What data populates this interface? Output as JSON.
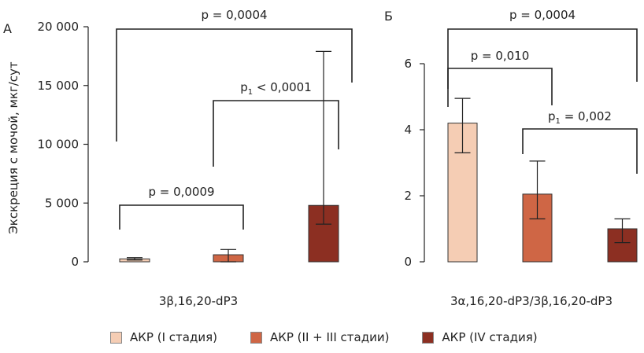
{
  "colors": {
    "stage1": "#f5cdb4",
    "stage23": "#cf6645",
    "stage4": "#8c2f22",
    "stroke": "#222222"
  },
  "legend": [
    {
      "label": "АКР (I стадия)",
      "color": "#f5cdb4"
    },
    {
      "label": "АКР (II + III стадии)",
      "color": "#cf6645"
    },
    {
      "label": "АКР (IV стадия)",
      "color": "#8c2f22"
    }
  ],
  "chart_data": [
    {
      "panel": "А",
      "type": "bar",
      "xlabel": "3β,16,20-dP3",
      "ylabel": "Экскреция с мочой, мкг/сут",
      "ylim": [
        0,
        20000
      ],
      "yticks": [
        0,
        5000,
        10000,
        15000,
        20000
      ],
      "ytick_labels": [
        "0",
        "5 000",
        "10 000",
        "15 000",
        "20 000"
      ],
      "series": [
        {
          "name": "АКР (I стадия)",
          "value": 250,
          "err_low": 150,
          "err_high": 350
        },
        {
          "name": "АКР (II + III стадии)",
          "value": 600,
          "err_low": 0,
          "err_high": 1050
        },
        {
          "name": "АКР (IV стадия)",
          "value": 4800,
          "err_low": 3200,
          "err_high": 17900
        }
      ],
      "annotations": [
        {
          "text": "p = 0,0004",
          "from": 0,
          "to": 2
        },
        {
          "text": "p",
          "sub": "1",
          "rest": " < 0,0001",
          "from": 1,
          "to": 2
        },
        {
          "text": "p = 0,0009",
          "from": 0,
          "to": 1
        }
      ]
    },
    {
      "panel": "Б",
      "type": "bar",
      "xlabel": "3α,16,20-dP3/3β,16,20-dP3",
      "ylabel": "",
      "ylim": [
        0,
        6.5
      ],
      "yticks": [
        0,
        2,
        4,
        6
      ],
      "ytick_labels": [
        "0",
        "2",
        "4",
        "6"
      ],
      "series": [
        {
          "name": "АКР (I стадия)",
          "value": 4.2,
          "err_low": 3.3,
          "err_high": 4.95
        },
        {
          "name": "АКР (II + III стадии)",
          "value": 2.05,
          "err_low": 1.3,
          "err_high": 3.05
        },
        {
          "name": "АКР (IV стадия)",
          "value": 1.0,
          "err_low": 0.58,
          "err_high": 1.3
        }
      ],
      "annotations": [
        {
          "text": "p = 0,0004",
          "from": 0,
          "to": 2
        },
        {
          "text": "p = 0,010",
          "from": 0,
          "to": 1
        },
        {
          "text": "p",
          "sub": "1",
          "rest": " = 0,002",
          "from": 1,
          "to": 2
        }
      ]
    }
  ]
}
